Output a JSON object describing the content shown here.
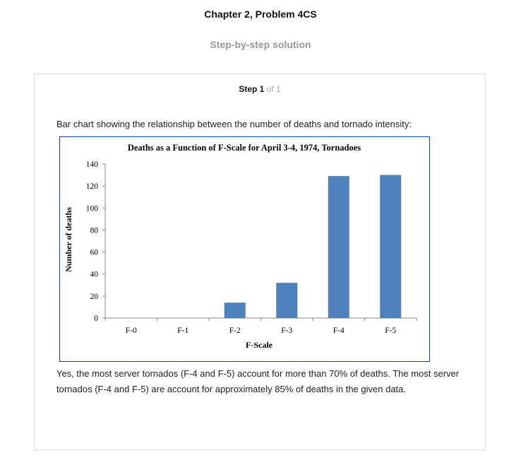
{
  "header": {
    "chapter_title": "Chapter 2, Problem 4CS",
    "subtitle": "Step-by-step solution"
  },
  "step": {
    "label": "Step 1",
    "of": "of 1"
  },
  "intro_text": "Bar chart showing the relationship between the number of deaths and tornado intensity:",
  "conclusion_text": "Yes, the most server tornados (F-4 and F-5) account for more than 70% of deaths. The most server tornados (F-4 and F-5) are account for approximately 85% of deaths in the given data.",
  "colors": {
    "bar": "#4f81bd",
    "frame": "#1f3a8c"
  },
  "chart_data": {
    "type": "bar",
    "title": "Deaths as a Function of F-Scale for April 3-4, 1974, Tornadoes",
    "xlabel": "F-Scale",
    "ylabel": "Number of deaths",
    "categories": [
      "F-0",
      "F-1",
      "F-2",
      "F-3",
      "F-4",
      "F-5"
    ],
    "values": [
      0,
      0,
      14,
      32,
      129,
      130
    ],
    "ylim": [
      0,
      140
    ],
    "yticks": [
      0,
      20,
      40,
      60,
      80,
      100,
      120,
      140
    ],
    "grid": false,
    "legend": "none"
  }
}
